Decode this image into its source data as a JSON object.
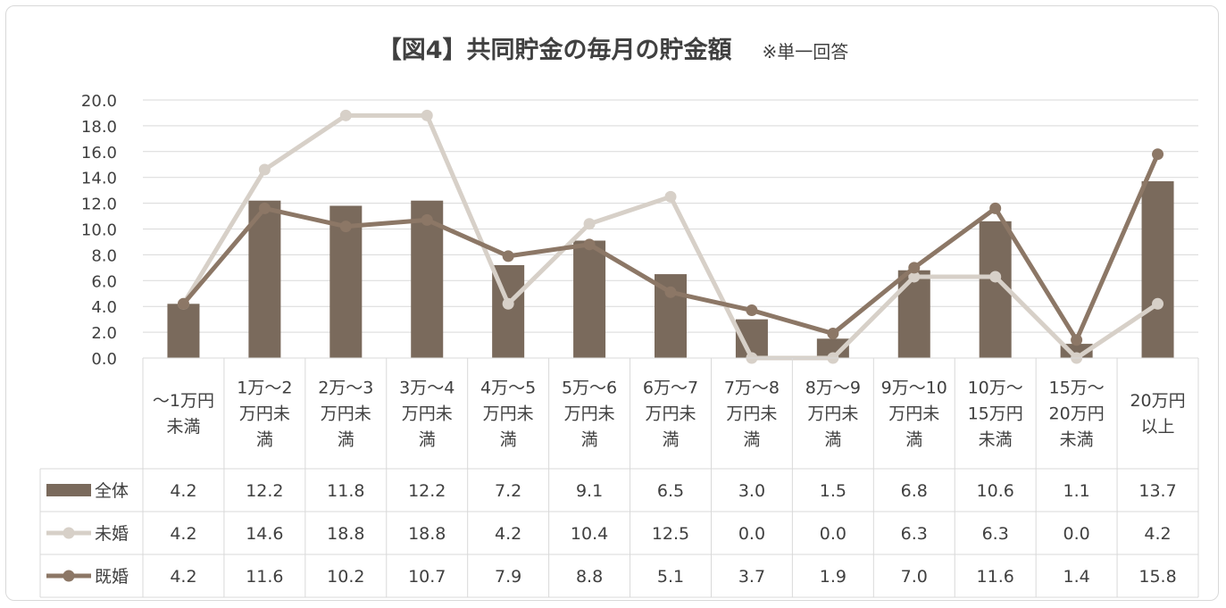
{
  "chart_data": {
    "type": "bar",
    "title": "【図4】共同貯金の毎月の貯金額",
    "note": "※単一回答",
    "ylim": [
      0,
      20
    ],
    "yticks": [
      "20.0",
      "18.0",
      "16.0",
      "14.0",
      "12.0",
      "10.0",
      "8.0",
      "6.0",
      "4.0",
      "2.0",
      "0.0"
    ],
    "grid": true,
    "legend_position": "table-left",
    "categories": [
      [
        "～1万円",
        "未満"
      ],
      [
        "1万～2",
        "万円未",
        "満"
      ],
      [
        "2万～3",
        "万円未",
        "満"
      ],
      [
        "3万～4",
        "万円未",
        "満"
      ],
      [
        "4万～5",
        "万円未",
        "満"
      ],
      [
        "5万～6",
        "万円未",
        "満"
      ],
      [
        "6万～7",
        "万円未",
        "満"
      ],
      [
        "7万～8",
        "万円未",
        "満"
      ],
      [
        "8万～9",
        "万円未",
        "満"
      ],
      [
        "9万～10",
        "万円未",
        "満"
      ],
      [
        "10万～",
        "15万円",
        "未満"
      ],
      [
        "15万～",
        "20万円",
        "未満"
      ],
      [
        "20万円",
        "以上"
      ]
    ],
    "series": [
      {
        "name": "全体",
        "type": "bar",
        "color": "#7a6a5c",
        "values": [
          4.2,
          12.2,
          11.8,
          12.2,
          7.2,
          9.1,
          6.5,
          3.0,
          1.5,
          6.8,
          10.6,
          1.1,
          13.7
        ],
        "labels": [
          "4.2",
          "12.2",
          "11.8",
          "12.2",
          "7.2",
          "9.1",
          "6.5",
          "3.0",
          "1.5",
          "6.8",
          "10.6",
          "1.1",
          "13.7"
        ]
      },
      {
        "name": "未婚",
        "type": "line",
        "color": "#d7d0c8",
        "values": [
          4.2,
          14.6,
          18.8,
          18.8,
          4.2,
          10.4,
          12.5,
          0.0,
          0.0,
          6.3,
          6.3,
          0.0,
          4.2
        ],
        "labels": [
          "4.2",
          "14.6",
          "18.8",
          "18.8",
          "4.2",
          "10.4",
          "12.5",
          "0.0",
          "0.0",
          "6.3",
          "6.3",
          "0.0",
          "4.2"
        ]
      },
      {
        "name": "既婚",
        "type": "line",
        "color": "#8c7766",
        "values": [
          4.2,
          11.6,
          10.2,
          10.7,
          7.9,
          8.8,
          5.1,
          3.7,
          1.9,
          7.0,
          11.6,
          1.4,
          15.8
        ],
        "labels": [
          "4.2",
          "11.6",
          "10.2",
          "10.7",
          "7.9",
          "8.8",
          "5.1",
          "3.7",
          "1.9",
          "7.0",
          "11.6",
          "1.4",
          "15.8"
        ]
      }
    ]
  }
}
